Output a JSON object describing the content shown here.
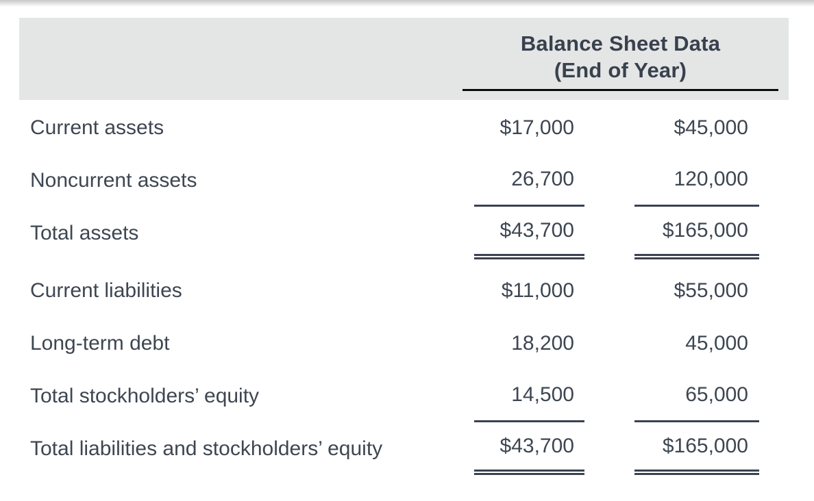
{
  "header": {
    "title_line1": "Balance Sheet Data",
    "title_line2": "(End of Year)",
    "band_color": "#e4e5e5",
    "underline_color": "#0b0b0b"
  },
  "table": {
    "text_color": "#3d4651",
    "rule_color": "#39424e",
    "columns": [
      "col1",
      "col2"
    ],
    "rows": [
      {
        "label": "Current assets",
        "col1": "$17,000",
        "col2": "$45,000",
        "rule": "none"
      },
      {
        "label": "Noncurrent assets",
        "col1": "26,700",
        "col2": "120,000",
        "rule": "single"
      },
      {
        "label": "Total assets",
        "col1": "$43,700",
        "col2": "$165,000",
        "rule": "double"
      },
      {
        "label": "Current liabilities",
        "col1": "$11,000",
        "col2": "$55,000",
        "rule": "none"
      },
      {
        "label": "Long-term debt",
        "col1": "18,200",
        "col2": "45,000",
        "rule": "none"
      },
      {
        "label": "Total stockholders’ equity",
        "col1": "14,500",
        "col2": "65,000",
        "rule": "single"
      },
      {
        "label": "Total liabilities and stockholders’ equity",
        "col1": "$43,700",
        "col2": "$165,000",
        "rule": "double"
      }
    ]
  }
}
